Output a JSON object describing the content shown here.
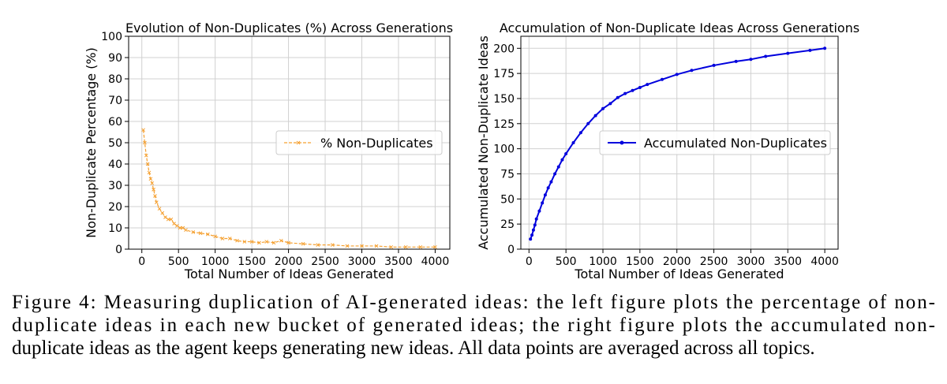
{
  "chart_data": [
    {
      "type": "line",
      "title": "Evolution of Non-Duplicates (%) Across Generations",
      "x_label": "Total Number of Ideas Generated",
      "y_label": "Non-Duplicate Percentage (%)",
      "x": [
        20,
        40,
        60,
        80,
        100,
        120,
        140,
        160,
        180,
        200,
        240,
        280,
        320,
        360,
        400,
        440,
        480,
        520,
        560,
        600,
        700,
        800,
        900,
        1000,
        1100,
        1200,
        1300,
        1400,
        1500,
        1600,
        1700,
        1800,
        1900,
        2000,
        2200,
        2400,
        2600,
        2800,
        3000,
        3200,
        3400,
        3600,
        3800,
        4000
      ],
      "series": [
        {
          "name": "% Non-Duplicates",
          "color": "#f5a030",
          "marker": "x",
          "dash": true,
          "values": [
            56,
            50,
            44,
            40,
            36,
            33,
            31,
            28,
            25,
            22,
            19,
            17,
            15,
            14,
            14,
            12,
            11,
            10,
            10,
            9,
            8,
            7.5,
            7,
            6,
            5,
            5,
            4,
            3.5,
            3.5,
            3,
            3.5,
            3,
            4,
            3,
            2.5,
            2,
            2,
            1.5,
            1.5,
            1.5,
            1,
            1,
            1,
            1
          ]
        }
      ],
      "xlim": [
        -180,
        4200
      ],
      "xticks": [
        0,
        500,
        1000,
        1500,
        2000,
        2500,
        3000,
        3500,
        4000
      ],
      "ylim": [
        0,
        100
      ],
      "yticks": [
        0,
        10,
        20,
        30,
        40,
        50,
        60,
        70,
        80,
        90,
        100
      ],
      "grid": true,
      "legend": "center right"
    },
    {
      "type": "line",
      "title": "Accumulation of Non-Duplicate Ideas Across Generations",
      "x_label": "Total Number of Ideas Generated",
      "y_label": "Accumulated Non-Duplicate Ideas",
      "x": [
        20,
        40,
        60,
        80,
        100,
        140,
        180,
        220,
        260,
        300,
        350,
        400,
        450,
        500,
        600,
        700,
        800,
        900,
        1000,
        1100,
        1200,
        1300,
        1400,
        1500,
        1600,
        1800,
        2000,
        2200,
        2500,
        2800,
        3000,
        3200,
        3500,
        3800,
        4000
      ],
      "series": [
        {
          "name": "Accumulated Non-Duplicates",
          "color": "#0000dd",
          "marker": "o",
          "dash": false,
          "values": [
            10,
            14,
            19,
            24,
            30,
            38,
            46,
            54,
            61,
            67,
            75,
            82,
            89,
            95,
            106,
            116,
            125,
            133,
            140,
            145,
            151,
            155,
            158,
            161,
            164,
            169,
            174,
            178,
            183,
            187,
            189,
            192,
            195,
            198,
            200
          ]
        }
      ],
      "xlim": [
        -110,
        4180
      ],
      "xticks": [
        0,
        500,
        1000,
        1500,
        2000,
        2500,
        3000,
        3500,
        4000
      ],
      "ylim": [
        0,
        212
      ],
      "yticks": [
        0,
        25,
        50,
        75,
        100,
        125,
        150,
        175,
        200
      ],
      "grid": true,
      "legend": "center right"
    }
  ],
  "caption": [
    "Figure 4: Measuring duplication of AI-generated ideas: the left figure plots the percentage of non-",
    "duplicate ideas in each new bucket of generated ideas; the right figure plots the accumulated non-",
    "duplicate ideas as the agent keeps generating new ideas. All data points are averaged across all topics."
  ]
}
